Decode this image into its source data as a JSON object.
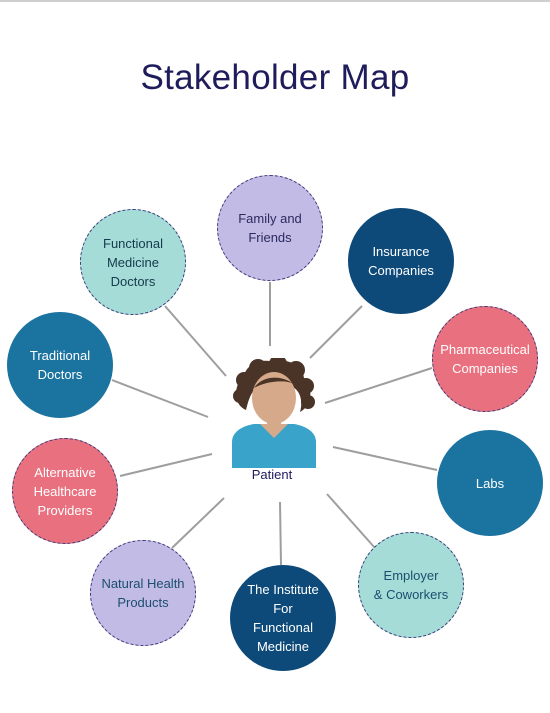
{
  "title": "Stakeholder Map",
  "center": {
    "label": "Patient"
  },
  "nodes": [
    {
      "id": "family-and-friends",
      "label": "Family and\nFriends"
    },
    {
      "id": "insurance-companies",
      "label": "Insurance\nCompanies"
    },
    {
      "id": "pharmaceutical-companies",
      "label": "Pharmaceutical\nCompanies"
    },
    {
      "id": "labs",
      "label": "Labs"
    },
    {
      "id": "employer-coworkers",
      "label": "Employer\n& Coworkers"
    },
    {
      "id": "institute-functional-medicine",
      "label": "The Institute\nFor\nFunctional\nMedicine"
    },
    {
      "id": "natural-health-products",
      "label": "Natural Health\nProducts"
    },
    {
      "id": "alternative-healthcare-providers",
      "label": "Alternative\nHealthcare\nProviders"
    },
    {
      "id": "traditional-doctors",
      "label": "Traditional\nDoctors"
    },
    {
      "id": "functional-medicine-doctors",
      "label": "Functional\nMedicine\nDoctors"
    }
  ],
  "colors": {
    "lavender": "#c2bbe6",
    "mint": "#a5dcd8",
    "navy": "#0d4a7a",
    "teal": "#1b73a0",
    "pink": "#e9707f",
    "title": "#1f1c5c",
    "connector": "#9e9e9e"
  }
}
